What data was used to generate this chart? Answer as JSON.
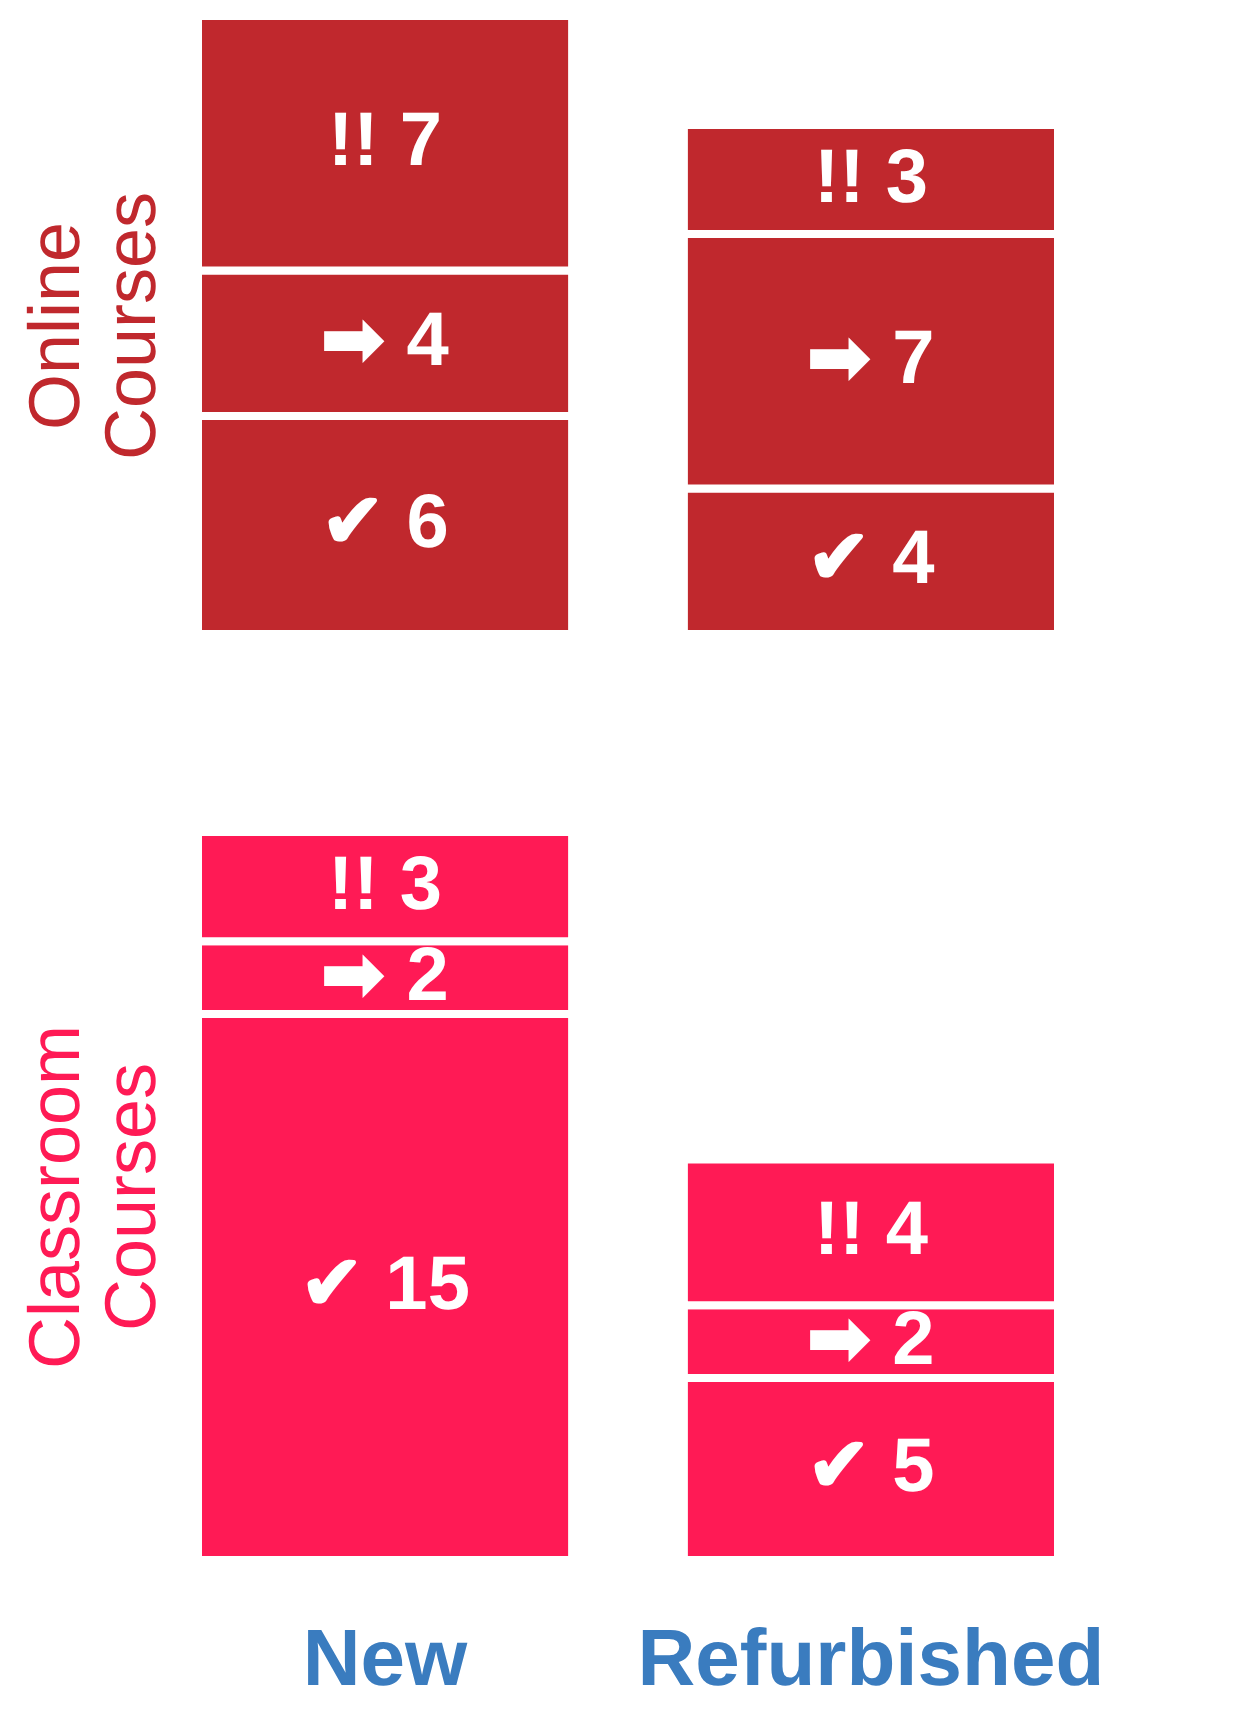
{
  "chart_data": [
    {
      "type": "bar",
      "stacked": true,
      "ylabel": "Online Courses",
      "categories": [
        "New",
        "Refurbished"
      ],
      "tick_labels": false,
      "series": [
        {
          "color": "#c0282d",
          "values": [
            6,
            4
          ],
          "value_labels": [
            "✔ 6",
            "✔ 4"
          ]
        },
        {
          "color": "#c0282d",
          "values": [
            4,
            7
          ],
          "value_labels": [
            "➡ 4",
            "➡ 7"
          ]
        },
        {
          "color": "#c0282d",
          "values": [
            7,
            3
          ],
          "value_labels": [
            "!! 7",
            "!! 3"
          ]
        }
      ]
    },
    {
      "type": "bar",
      "stacked": true,
      "ylabel": "Classroom Courses",
      "categories": [
        "New",
        "Refurbished"
      ],
      "tick_labels": "x",
      "series": [
        {
          "color": "#ff1a55",
          "values": [
            15,
            5
          ],
          "value_labels": [
            "✔ 15",
            "✔ 5"
          ]
        },
        {
          "color": "#ff1a55",
          "values": [
            2,
            2
          ],
          "value_labels": [
            "➡ 2",
            "➡ 2"
          ]
        },
        {
          "color": "#ff1a55",
          "values": [
            3,
            4
          ],
          "value_labels": [
            "!! 3",
            "!! 4"
          ]
        }
      ]
    }
  ]
}
